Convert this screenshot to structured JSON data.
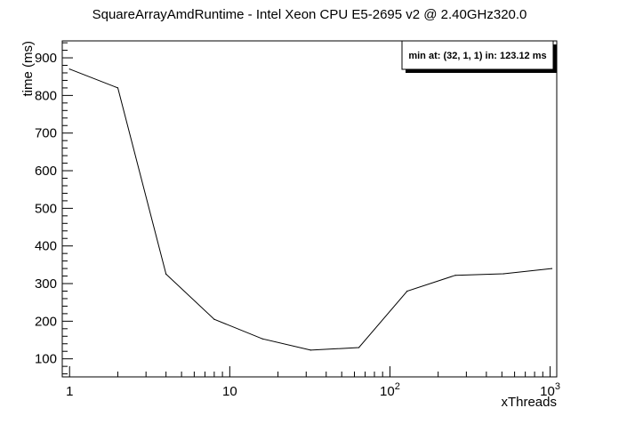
{
  "chart_data": {
    "type": "line",
    "title": "SquareArrayAmdRuntime - Intel Xeon CPU E5-2695 v2 @ 2.40GHz320.0",
    "xlabel": "xThreads",
    "ylabel": "time (ms)",
    "x_scale": "log",
    "xlim": [
      0.9,
      1100
    ],
    "ylim": [
      52,
      945
    ],
    "x_ticks": [
      {
        "value": 1,
        "label": "1"
      },
      {
        "value": 10,
        "label": "10"
      },
      {
        "value": 100,
        "label": "10",
        "exp": "2"
      },
      {
        "value": 1000,
        "label": "10",
        "exp": "3"
      }
    ],
    "y_ticks": [
      {
        "value": 100,
        "label": "100"
      },
      {
        "value": 200,
        "label": "200"
      },
      {
        "value": 300,
        "label": "300"
      },
      {
        "value": 400,
        "label": "400"
      },
      {
        "value": 500,
        "label": "500"
      },
      {
        "value": 600,
        "label": "600"
      },
      {
        "value": 700,
        "label": "700"
      },
      {
        "value": 800,
        "label": "800"
      },
      {
        "value": 900,
        "label": "900"
      }
    ],
    "grid": false,
    "series": [
      {
        "x": [
          1,
          2,
          4,
          8,
          16,
          32,
          64,
          128,
          256,
          512,
          1024
        ],
        "y": [
          870,
          820,
          325,
          205,
          153,
          123.12,
          130,
          280,
          322,
          326,
          340
        ]
      }
    ],
    "legend": {
      "position": "top-right",
      "text": "min at: (32, 1, 1) in: 123.12 ms"
    }
  }
}
